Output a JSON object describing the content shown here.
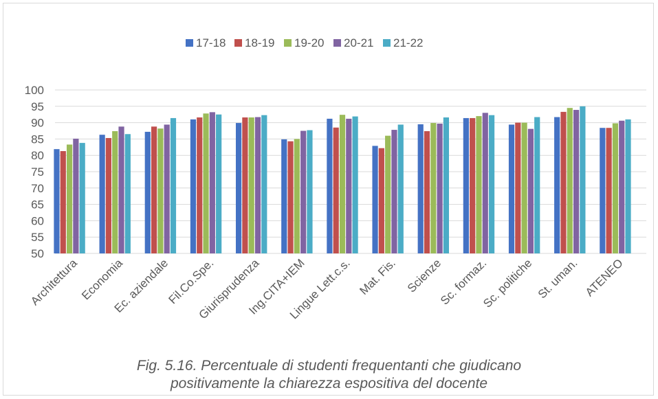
{
  "chart_data": {
    "type": "bar",
    "title": "",
    "xlabel": "",
    "ylabel": "",
    "ylim": [
      50,
      100
    ],
    "yticks": [
      50,
      55,
      60,
      65,
      70,
      75,
      80,
      85,
      90,
      95,
      100
    ],
    "grid": true,
    "legend_position": "top",
    "categories": [
      "Architettura",
      "Economia",
      "Ec. aziendale",
      "Fil.Co.Spe.",
      "Giurisprudenza",
      "Ing.CITA+IEM",
      "Lingue Lett.c.s.",
      "Mat. Fis.",
      "Scienze",
      "Sc. formaz.",
      "Sc. politiche",
      "St. uman.",
      "ATENEO"
    ],
    "series": [
      {
        "name": "17-18",
        "color": "#4472C4",
        "values": [
          81.9,
          86.3,
          87.2,
          91.0,
          89.9,
          84.9,
          91.2,
          82.9,
          89.5,
          91.4,
          89.4,
          91.7,
          88.4
        ]
      },
      {
        "name": "18-19",
        "color": "#C0504D",
        "values": [
          81.3,
          85.3,
          88.8,
          91.6,
          91.6,
          84.3,
          88.5,
          82.2,
          87.4,
          91.4,
          90.0,
          93.3,
          88.4
        ]
      },
      {
        "name": "19-20",
        "color": "#9BBB59",
        "values": [
          83.3,
          87.4,
          88.2,
          92.8,
          91.6,
          85.0,
          92.4,
          86.0,
          89.9,
          92.0,
          90.0,
          94.5,
          89.8
        ]
      },
      {
        "name": "20-21",
        "color": "#8064A2",
        "values": [
          85.1,
          88.8,
          89.4,
          93.2,
          91.7,
          87.5,
          91.2,
          87.8,
          89.7,
          93.0,
          88.1,
          93.9,
          90.6
        ]
      },
      {
        "name": "21-22",
        "color": "#4BACC6",
        "values": [
          83.8,
          86.5,
          91.4,
          92.5,
          92.3,
          87.7,
          91.9,
          89.4,
          91.6,
          92.3,
          91.7,
          95.0,
          91.0
        ]
      }
    ]
  },
  "caption": {
    "line1": "Fig. 5.16. Percentuale di studenti frequentanti che giudicano",
    "line2": "positivamente la chiarezza espositiva del docente"
  }
}
